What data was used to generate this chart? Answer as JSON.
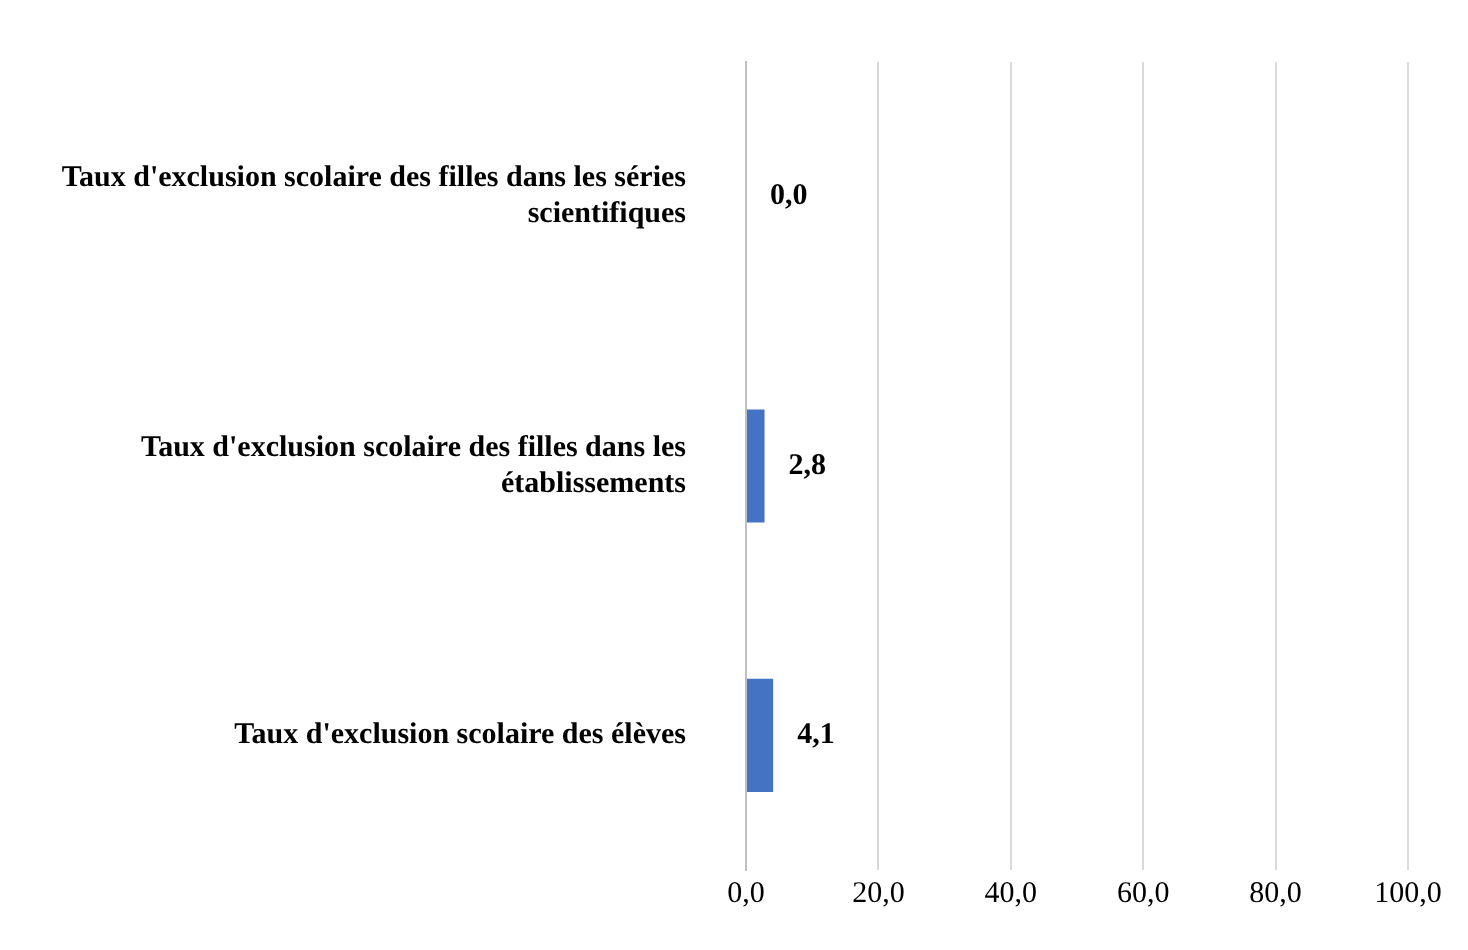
{
  "chart_data": {
    "type": "bar",
    "orientation": "horizontal",
    "categories": [
      "Taux d'exclusion scolaire des filles dans les séries scientifiques",
      "Taux d'exclusion scolaire des filles dans les établissements",
      "Taux d'exclusion scolaire des élèves"
    ],
    "values": [
      0.0,
      2.8,
      4.1
    ],
    "color": "#4472c4",
    "value_labels": [
      "0,0",
      "2,8",
      "4,1"
    ],
    "xlim": [
      0,
      100
    ],
    "xticks": [
      {
        "value": 0,
        "label": "0,0"
      },
      {
        "value": 20,
        "label": "20,0"
      },
      {
        "value": 40,
        "label": "40,0"
      },
      {
        "value": 60,
        "label": "60,0"
      },
      {
        "value": 80,
        "label": "80,0"
      },
      {
        "value": 100,
        "label": "100,0"
      }
    ],
    "grid": "x",
    "legend": false
  }
}
